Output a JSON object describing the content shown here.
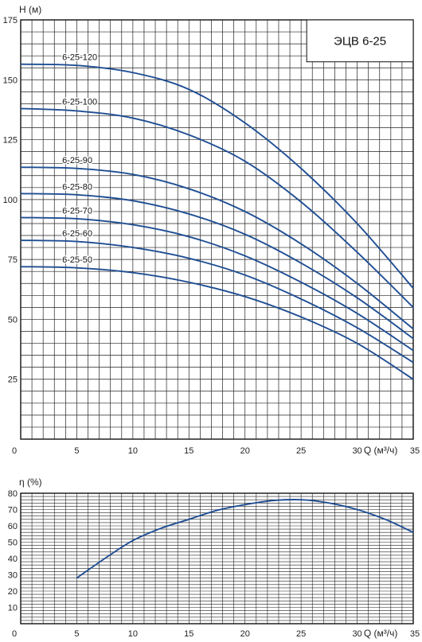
{
  "chart_data": [
    {
      "type": "line",
      "title": "ЭЦВ 6-25",
      "ylabel": "Н (м)",
      "xlabel": "Q (м³/ч)",
      "xlim": [
        0,
        35
      ],
      "ylim": [
        0,
        175
      ],
      "x_ticks": [
        "0",
        "5",
        "10",
        "15",
        "20",
        "25",
        "30",
        "35"
      ],
      "y_ticks": [
        "25",
        "50",
        "75",
        "100",
        "125",
        "150",
        "175"
      ],
      "grid": true,
      "series": [
        {
          "name": "6-25-120",
          "x": [
            0,
            5,
            10,
            15,
            20,
            25,
            30,
            35
          ],
          "values": [
            156.5,
            156,
            153,
            146,
            132,
            113,
            90,
            63
          ]
        },
        {
          "name": "6-25-100",
          "x": [
            0,
            5,
            10,
            15,
            20,
            25,
            30,
            35
          ],
          "values": [
            138,
            137,
            134,
            127,
            116,
            99,
            78,
            55
          ]
        },
        {
          "name": "6-25-90",
          "x": [
            0,
            5,
            10,
            15,
            20,
            25,
            30,
            35
          ],
          "values": [
            113.5,
            113,
            110.5,
            104.5,
            95,
            81.5,
            65,
            46
          ]
        },
        {
          "name": "6-25-80",
          "x": [
            0,
            5,
            10,
            15,
            20,
            25,
            30,
            35
          ],
          "values": [
            102.5,
            102,
            99.5,
            94,
            85.5,
            73.5,
            59,
            42
          ]
        },
        {
          "name": "6-25-70",
          "x": [
            0,
            5,
            10,
            15,
            20,
            25,
            30,
            35
          ],
          "values": [
            92.5,
            92,
            89.5,
            84.5,
            76.5,
            65.5,
            52.5,
            37
          ]
        },
        {
          "name": "6-25-60",
          "x": [
            0,
            5,
            10,
            15,
            20,
            25,
            30,
            35
          ],
          "values": [
            83,
            82.5,
            80,
            75.5,
            68.5,
            58.5,
            46.5,
            32
          ]
        },
        {
          "name": "6-25-50",
          "x": [
            0,
            5,
            10,
            15,
            20,
            25,
            30,
            35
          ],
          "values": [
            72,
            71.5,
            69.5,
            65.5,
            59.5,
            51,
            40,
            25
          ]
        }
      ]
    },
    {
      "type": "line",
      "ylabel": "η (%)",
      "xlabel": "Q (м³/ч)",
      "xlim": [
        0,
        35
      ],
      "ylim": [
        0,
        80
      ],
      "x_ticks": [
        "0",
        "5",
        "10",
        "15",
        "20",
        "25",
        "30",
        "35"
      ],
      "y_ticks": [
        "10",
        "20",
        "30",
        "40",
        "50",
        "60",
        "70",
        "80"
      ],
      "grid": true,
      "series": [
        {
          "name": "",
          "x": [
            5,
            7.5,
            10,
            12.5,
            15,
            17.5,
            20,
            22.5,
            25,
            27.5,
            30,
            32.5,
            35
          ],
          "values": [
            28,
            40,
            51,
            58.5,
            64,
            69.5,
            73,
            75.5,
            76,
            74,
            70,
            64,
            56
          ]
        }
      ]
    }
  ],
  "colors": {
    "curve": "#1f4e94",
    "grid": "#222222",
    "axis": "#111111"
  }
}
